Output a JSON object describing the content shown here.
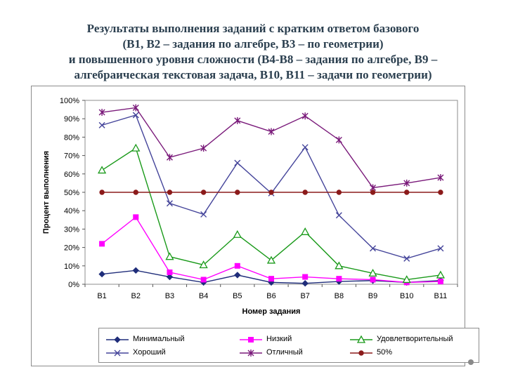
{
  "slide": {
    "title_lines": [
      "Результаты выполнения заданий с кратким ответом базового",
      "(В1, В2 – задания по алгебре, В3 – по геометрии)",
      "и повышенного уровня сложности (В4-В8 – задания по алгебре, В9 –",
      "алгебраическая текстовая задача, В10, В11 – задачи по геометрии)"
    ]
  },
  "chart_data": {
    "type": "line",
    "title": "",
    "xlabel": "Номер задания",
    "ylabel": "Процент выполнения",
    "categories": [
      "B1",
      "B2",
      "B3",
      "B4",
      "B5",
      "B6",
      "B7",
      "B8",
      "B9",
      "B10",
      "B11"
    ],
    "ylim": [
      0,
      100
    ],
    "yticks": [
      "0%",
      "10%",
      "20%",
      "30%",
      "40%",
      "50%",
      "60%",
      "70%",
      "80%",
      "90%",
      "100%"
    ],
    "grid": false,
    "legend_position": "bottom",
    "series": [
      {
        "name": "Минимальный",
        "color": "#1f2d7a",
        "marker": "diamond",
        "values": [
          5.5,
          7.5,
          4,
          1,
          5,
          1,
          0.5,
          1.5,
          2,
          1,
          2
        ]
      },
      {
        "name": "Низкий",
        "color": "#ff00ff",
        "marker": "square",
        "values": [
          22,
          36.5,
          6.5,
          2.5,
          10,
          3,
          4,
          3,
          2.5,
          1,
          1.5
        ]
      },
      {
        "name": "Удовлетворительный",
        "color": "#1a9a1a",
        "marker": "triangle",
        "values": [
          62,
          74,
          15,
          10.5,
          27,
          13,
          28.5,
          10,
          6,
          2.5,
          5
        ]
      },
      {
        "name": "Хороший",
        "color": "#44449a",
        "marker": "x",
        "values": [
          86.5,
          92,
          44,
          38,
          66,
          49.5,
          74.5,
          37.5,
          19.5,
          14,
          19.5
        ]
      },
      {
        "name": "Отличный",
        "color": "#7a1a7a",
        "marker": "star",
        "values": [
          93.5,
          96,
          69,
          74,
          89,
          83,
          91.5,
          78.5,
          52.5,
          55,
          58
        ]
      },
      {
        "name": "50%",
        "color": "#8b1a1a",
        "marker": "circle",
        "values": [
          50,
          50,
          50,
          50,
          50,
          50,
          50,
          50,
          50,
          50,
          50
        ]
      }
    ]
  }
}
